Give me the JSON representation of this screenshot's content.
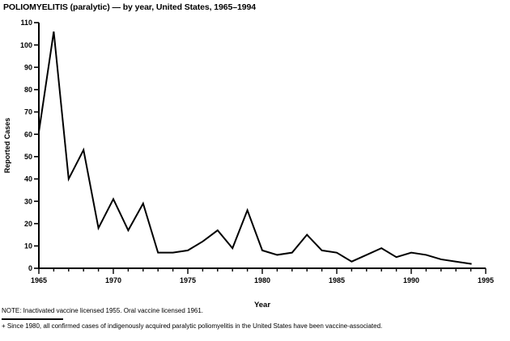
{
  "title": "POLIOMYELITIS (paralytic) — by year, United States, 1965–1994",
  "chart_data": {
    "type": "line",
    "x": [
      1965,
      1966,
      1967,
      1968,
      1969,
      1970,
      1971,
      1972,
      1973,
      1974,
      1975,
      1976,
      1977,
      1978,
      1979,
      1980,
      1981,
      1982,
      1983,
      1984,
      1985,
      1986,
      1987,
      1988,
      1989,
      1990,
      1991,
      1992,
      1993,
      1994
    ],
    "values": [
      61,
      106,
      40,
      53,
      18,
      31,
      17,
      29,
      7,
      7,
      8,
      12,
      17,
      9,
      26,
      8,
      6,
      7,
      15,
      8,
      7,
      3,
      6,
      9,
      5,
      7,
      6,
      4,
      3,
      2
    ],
    "title": "POLIOMYELITIS (paralytic) — by year, United States, 1965–1994",
    "xlabel": "Year",
    "ylabel": "Reported Cases",
    "xlim": [
      1965,
      1995
    ],
    "ylim": [
      0,
      110
    ],
    "y_tick_interval": 10,
    "x_major_tick_interval": 5,
    "x_minor_tick_interval": 1,
    "grid": false,
    "legend": "none",
    "line_color": "#000000",
    "background_color": "#ffffff"
  },
  "footnotes": {
    "note": "NOTE: Inactivated vaccine licensed 1955. Oral vaccine licensed 1961.",
    "vaccine_note": "+ Since 1980, all confirmed cases of indigenously acquired paralytic poliomyelitis in the United States have been vaccine-associated."
  }
}
